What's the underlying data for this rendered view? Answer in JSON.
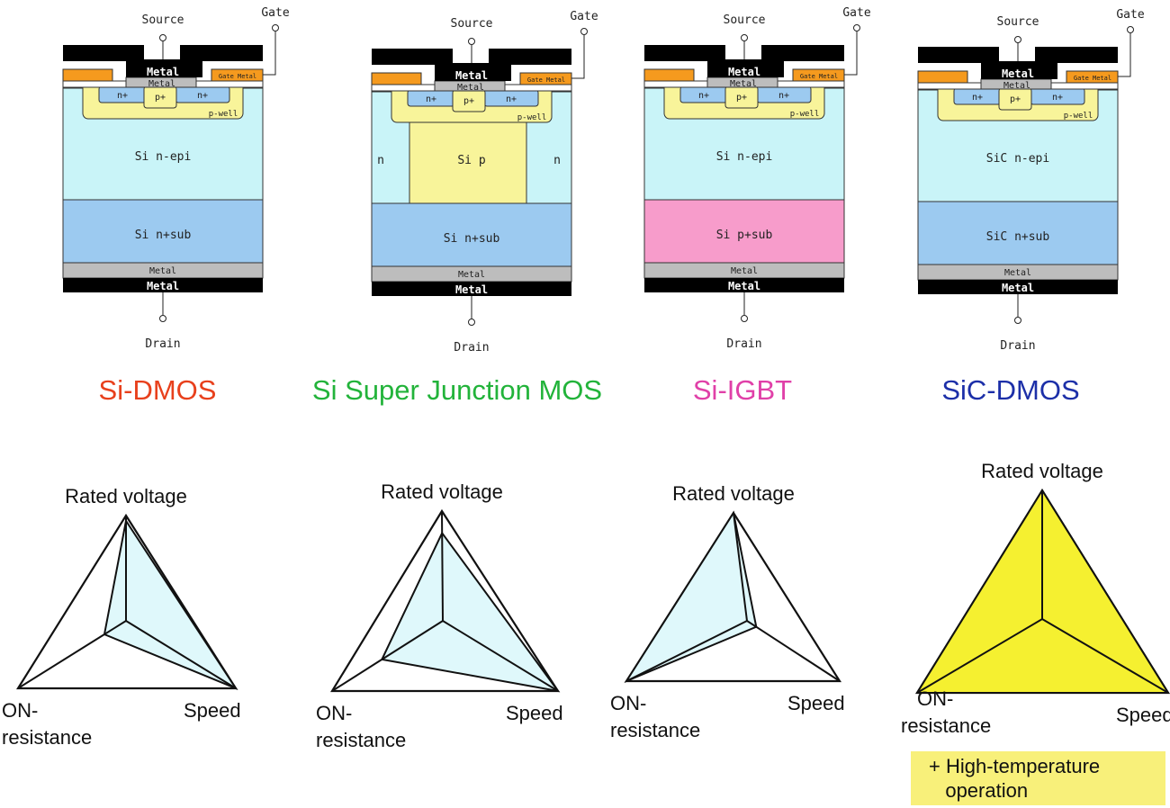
{
  "devices": [
    {
      "title": "Si-DMOS",
      "title_color": "#e8401c",
      "source": "Source",
      "gate": "Gate",
      "metal": "Metal",
      "gate_metal": "Gate Metal",
      "n_plus": "n+",
      "p_plus": "p+",
      "p_well": "p-well",
      "epi": "Si  n-epi",
      "sub": "Si n+sub",
      "sub_color": "#9ccaf0",
      "drain": "Drain"
    },
    {
      "title": "Si Super Junction MOS",
      "title_color": "#22b33a",
      "source": "Source",
      "gate": "Gate",
      "metal": "Metal",
      "gate_metal": "Gate Metal",
      "n_plus": "n+",
      "p_plus": "p+",
      "p_well": "p-well",
      "epi": "Si  p",
      "pillar_n": "n",
      "sub": "Si n+sub",
      "sub_color": "#9ccaf0",
      "drain": "Drain"
    },
    {
      "title": "Si-IGBT",
      "title_color": "#e040a8",
      "source": "Source",
      "gate": "Gate",
      "metal": "Metal",
      "gate_metal": "Gate Metal",
      "n_plus": "n+",
      "p_plus": "p+",
      "p_well": "p-well",
      "epi": "Si  n-epi",
      "sub": "Si p+sub",
      "sub_color": "#f79ccb",
      "drain": "Drain"
    },
    {
      "title": "SiC-DMOS",
      "title_color": "#1c2fa8",
      "source": "Source",
      "gate": "Gate",
      "metal": "Metal",
      "gate_metal": "Gate Metal",
      "n_plus": "n+",
      "p_plus": "p+",
      "p_well": "p-well",
      "epi": "SiC  n-epi",
      "sub": "SiC n+sub",
      "sub_color": "#9ccaf0",
      "drain": "Drain"
    }
  ],
  "radar": {
    "axes": [
      "Rated voltage",
      "ON-resistance",
      "Speed"
    ],
    "label_rated_voltage": "Rated voltage",
    "label_on": "ON-",
    "label_resistance": "resistance",
    "label_speed": "Speed",
    "charts": [
      {
        "device": "Si-DMOS",
        "values": [
          0.95,
          0.2,
          1.0
        ],
        "fill": "#dff8fb"
      },
      {
        "device": "Si Super Junction MOS",
        "values": [
          0.8,
          0.55,
          1.0
        ],
        "fill": "#dff8fb"
      },
      {
        "device": "Si-IGBT",
        "values": [
          1.0,
          1.0,
          0.1
        ],
        "fill": "#dff8fb"
      },
      {
        "device": "SiC-DMOS",
        "values": [
          1.0,
          1.0,
          1.0
        ],
        "fill": "#f5f030"
      }
    ],
    "sic_note": "+ High-temperature\n   operation"
  },
  "colors": {
    "epi": "#c9f4f8",
    "p_region": "#f8f49a",
    "n_plus": "#9ccaf0",
    "gate_metal": "#f59a1e",
    "metal_gray": "#bdbdbd",
    "metal_black": "#000000"
  }
}
